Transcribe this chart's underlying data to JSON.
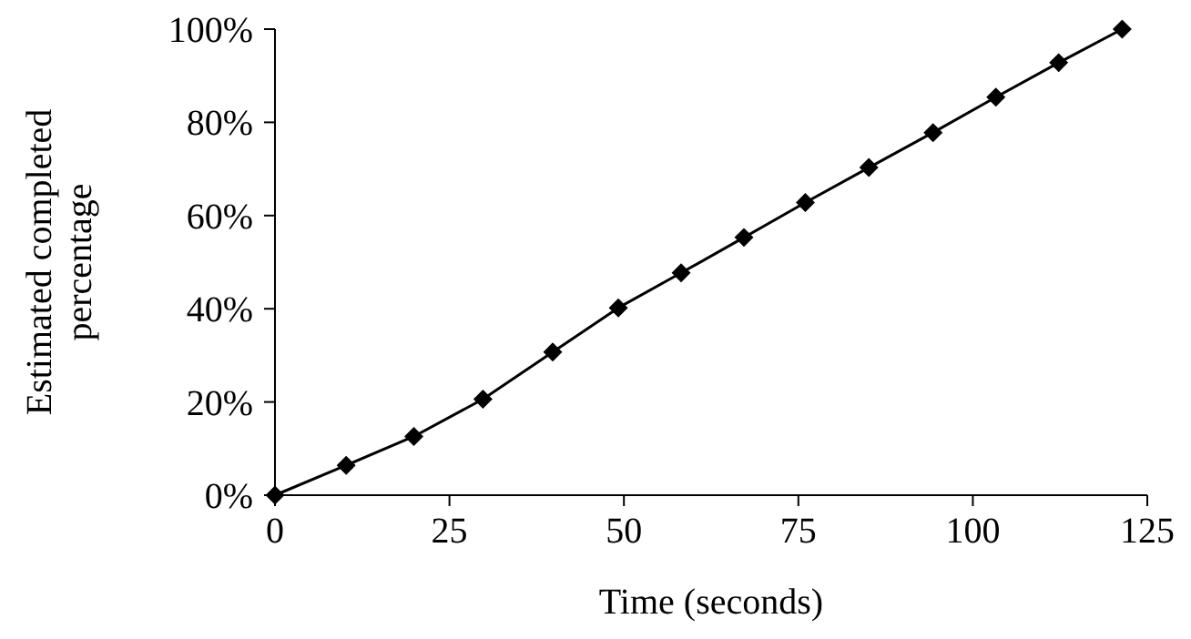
{
  "chart_data": {
    "type": "line",
    "xlabel": "Time (seconds)",
    "ylabel": "Estimated completed percentage",
    "x": [
      0,
      10.2,
      19.9,
      29.8,
      39.8,
      49.2,
      58.2,
      67.2,
      76.0,
      85.1,
      94.3,
      103.3,
      112.3,
      121.4
    ],
    "series": [
      {
        "color": "#000000",
        "values": [
          0,
          6.4,
          12.6,
          20.6,
          30.7,
          40.2,
          47.7,
          55.3,
          62.8,
          70.3,
          77.8,
          85.4,
          92.8,
          100
        ]
      }
    ],
    "xlim": [
      0,
      125
    ],
    "xticks": [
      0,
      25,
      50,
      75,
      100,
      125
    ],
    "ylim": [
      0,
      100
    ],
    "yticks": [
      {
        "value": 0,
        "label": "0%"
      },
      {
        "value": 20,
        "label": "20%"
      },
      {
        "value": 40,
        "label": "40%"
      },
      {
        "value": 60,
        "label": "60%"
      },
      {
        "value": 80,
        "label": "80%"
      },
      {
        "value": 100,
        "label": "100%"
      }
    ],
    "marker": "diamond",
    "line_style": "solid",
    "grid": false
  }
}
